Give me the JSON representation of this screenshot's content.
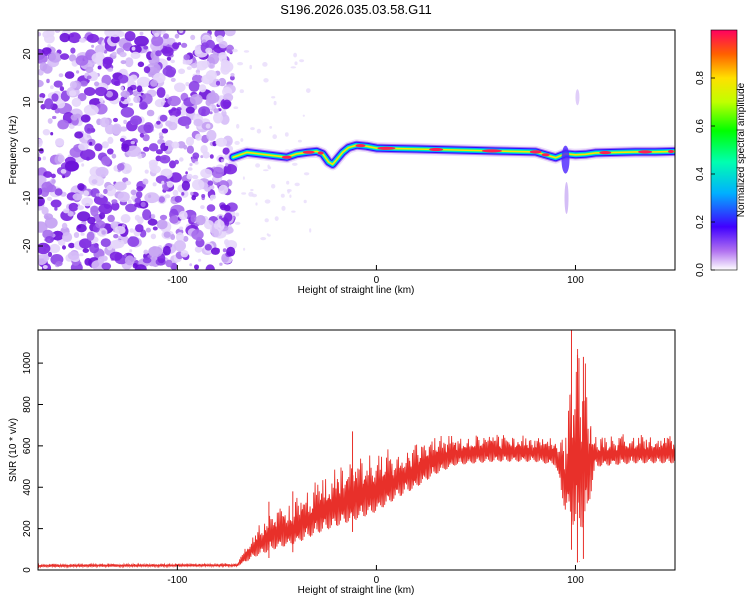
{
  "title": "S196.2026.035.03.58.G11",
  "chart_data": [
    {
      "type": "heatmap",
      "name": "spectrogram",
      "xlabel": "Height of straight line (km)",
      "ylabel": "Frequency (Hz)",
      "xlim": [
        -170,
        150
      ],
      "ylim": [
        -25,
        25
      ],
      "x_ticks": [
        -100,
        0,
        100
      ],
      "y_ticks": [
        -20,
        -10,
        0,
        10,
        20
      ],
      "noise_region_x": [
        -170,
        -72
      ],
      "ridge": {
        "x": [
          -72,
          -65,
          -55,
          -45,
          -40,
          -35,
          -30,
          -27,
          -24,
          -22,
          -20,
          -17,
          -14,
          -10,
          -5,
          0,
          10,
          20,
          40,
          60,
          80,
          85,
          90,
          95,
          100,
          105,
          110,
          120,
          130,
          140,
          150
        ],
        "freq": [
          -1.5,
          -0.5,
          -1.0,
          -1.5,
          -0.8,
          -0.5,
          -0.3,
          -0.8,
          -2.5,
          -3.0,
          -2.0,
          -0.5,
          0.5,
          1.0,
          0.8,
          0.4,
          0.3,
          0.2,
          0.0,
          -0.2,
          -0.4,
          -1.0,
          -1.6,
          -0.8,
          -1.0,
          -0.9,
          -0.6,
          -0.5,
          -0.4,
          -0.4,
          -0.3
        ]
      },
      "colorbar": {
        "label": "Normalized spectral amplitude",
        "range": [
          0.0,
          1.0
        ],
        "ticks": [
          "0.0",
          "0.2",
          "0.4",
          "0.6",
          "0.8"
        ]
      }
    },
    {
      "type": "line",
      "name": "snr",
      "xlabel": "Height of straight line (km)",
      "ylabel": "SNR (10 * v/v)",
      "xlim": [
        -170,
        150
      ],
      "ylim": [
        0,
        1160
      ],
      "x_ticks": [
        -100,
        0,
        100
      ],
      "y_ticks": [
        0,
        200,
        400,
        600,
        800,
        1000
      ],
      "color": "#e8302a",
      "envelope": {
        "x": [
          -170,
          -70,
          -60,
          -50,
          -40,
          -30,
          -20,
          -10,
          0,
          10,
          20,
          30,
          40,
          60,
          80,
          90,
          95,
          100,
          105,
          110,
          130,
          150
        ],
        "min": [
          12,
          15,
          40,
          70,
          90,
          130,
          160,
          190,
          230,
          300,
          360,
          430,
          480,
          500,
          500,
          480,
          200,
          30,
          60,
          470,
          490,
          490
        ],
        "max": [
          30,
          32,
          220,
          300,
          350,
          430,
          500,
          540,
          570,
          600,
          620,
          650,
          660,
          660,
          650,
          650,
          700,
          1160,
          1040,
          660,
          660,
          660
        ]
      },
      "spikes": [
        {
          "x": -12,
          "y": 670
        },
        {
          "x": -42,
          "y": 380
        },
        {
          "x": -54,
          "y": 330
        },
        {
          "x": 98,
          "y": 1160
        },
        {
          "x": 101,
          "y": 1040
        },
        {
          "x": 104,
          "y": 1030
        },
        {
          "x": 102,
          "y": 40
        }
      ]
    }
  ]
}
